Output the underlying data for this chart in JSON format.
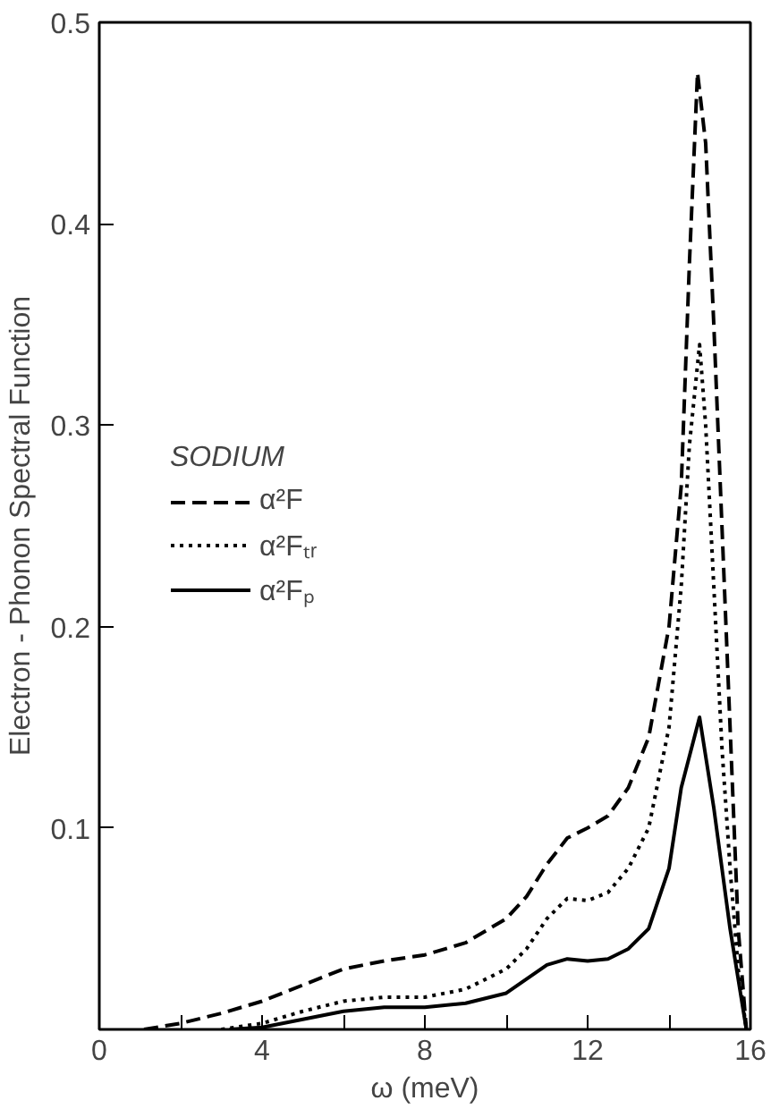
{
  "chart_data": {
    "type": "line",
    "xlabel": "ω (meV)",
    "ylabel": "Electron - Phonon Spectral Function",
    "legend_title": "SODIUM",
    "legend": "left",
    "grid": false,
    "xlim": [
      0,
      16
    ],
    "ylim": [
      0,
      0.5
    ],
    "xticks": [
      0,
      {
        "value": 2,
        "label": null
      },
      4,
      {
        "value": 6,
        "label": null
      },
      8,
      {
        "value": 10,
        "label": null
      },
      12,
      {
        "value": 14,
        "label": null
      },
      16
    ],
    "yticks": [
      {
        "value": 0,
        "label": null
      },
      0.1,
      0.2,
      0.3,
      0.4,
      0.5
    ],
    "series": [
      {
        "name": "α²F",
        "color": "#000000",
        "line_style": "dashed",
        "x": [
          1.1,
          2,
          3,
          4,
          5,
          6,
          7,
          8,
          9,
          10,
          10.5,
          11,
          11.5,
          12,
          12.5,
          13,
          13.5,
          14,
          14.3,
          14.5,
          14.7,
          14.9,
          15.1,
          15.3,
          15.5,
          15.7,
          15.9
        ],
        "values": [
          0,
          0.003,
          0.008,
          0.014,
          0.022,
          0.03,
          0.034,
          0.037,
          0.043,
          0.055,
          0.066,
          0.082,
          0.095,
          0.1,
          0.106,
          0.12,
          0.145,
          0.2,
          0.27,
          0.38,
          0.475,
          0.44,
          0.35,
          0.25,
          0.15,
          0.05,
          0
        ]
      },
      {
        "name": "α²Fₜᵣ",
        "color": "#000000",
        "line_style": "dotted",
        "x": [
          3,
          4,
          5,
          6,
          7,
          8,
          9,
          10,
          10.5,
          11,
          11.5,
          12,
          12.5,
          13,
          13.5,
          14,
          14.3,
          14.5,
          14.75,
          14.9,
          15.1,
          15.3,
          15.5,
          15.7,
          15.9
        ],
        "values": [
          0,
          0.003,
          0.009,
          0.014,
          0.016,
          0.016,
          0.02,
          0.03,
          0.04,
          0.055,
          0.065,
          0.064,
          0.068,
          0.08,
          0.1,
          0.15,
          0.22,
          0.29,
          0.34,
          0.3,
          0.22,
          0.14,
          0.08,
          0.03,
          0
        ]
      },
      {
        "name": "α²Fₚ",
        "color": "#000000",
        "line_style": "solid",
        "x": [
          3.2,
          4,
          5,
          6,
          7,
          8,
          9,
          10,
          10.5,
          11,
          11.5,
          12,
          12.5,
          13,
          13.5,
          14,
          14.3,
          14.75,
          15.1,
          15.5,
          15.9
        ],
        "values": [
          0,
          0.001,
          0.005,
          0.009,
          0.011,
          0.011,
          0.013,
          0.018,
          0.025,
          0.032,
          0.035,
          0.034,
          0.035,
          0.04,
          0.05,
          0.08,
          0.12,
          0.155,
          0.11,
          0.05,
          0
        ]
      }
    ]
  }
}
